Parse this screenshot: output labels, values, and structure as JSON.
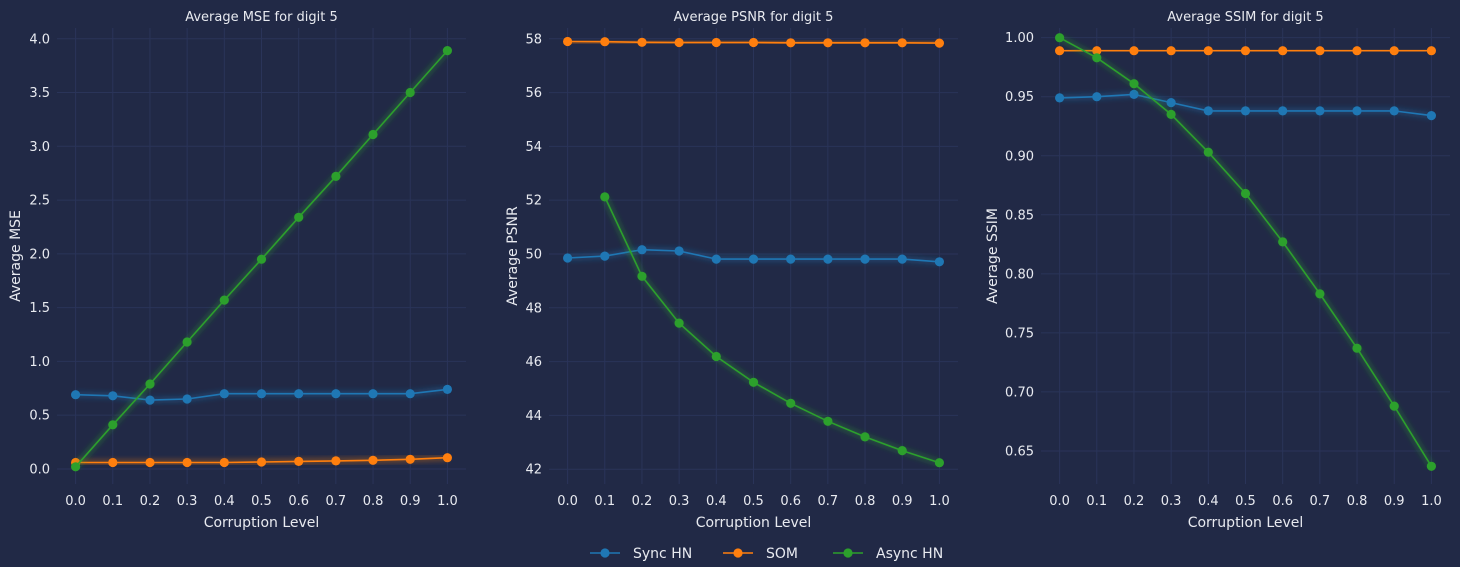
{
  "colors": {
    "background": "#212946",
    "grid": "#2A3459",
    "series": [
      "#1f77b4",
      "#ff7f0e",
      "#2ca02c"
    ]
  },
  "legend": {
    "placement": "bottom-center",
    "items": [
      "Sync HN",
      "SOM",
      "Async HN"
    ]
  },
  "chart_data": [
    {
      "type": "line",
      "title": "Average MSE for digit 5",
      "xlabel": "Corruption Level",
      "ylabel": "Average MSE",
      "x": [
        0.0,
        0.1,
        0.2,
        0.3,
        0.4,
        0.5,
        0.6,
        0.7,
        0.8,
        0.9,
        1.0
      ],
      "xticks": [
        "0.0",
        "0.1",
        "0.2",
        "0.3",
        "0.4",
        "0.5",
        "0.6",
        "0.7",
        "0.8",
        "0.9",
        "1.0"
      ],
      "xlim": [
        -0.05,
        1.05
      ],
      "ylim": [
        -0.14,
        4.1
      ],
      "yticks": [
        "0.0",
        "0.5",
        "1.0",
        "1.5",
        "2.0",
        "2.5",
        "3.0",
        "3.5",
        "4.0"
      ],
      "grid": true,
      "series": [
        {
          "name": "Sync HN",
          "values": [
            0.69,
            0.68,
            0.64,
            0.65,
            0.7,
            0.7,
            0.7,
            0.7,
            0.7,
            0.7,
            0.74
          ]
        },
        {
          "name": "SOM",
          "values": [
            0.06,
            0.06,
            0.06,
            0.06,
            0.06,
            0.065,
            0.07,
            0.075,
            0.08,
            0.09,
            0.105
          ]
        },
        {
          "name": "Async HN",
          "values": [
            0.02,
            0.41,
            0.79,
            1.18,
            1.57,
            1.95,
            2.34,
            2.72,
            3.11,
            3.5,
            3.89
          ]
        }
      ]
    },
    {
      "type": "line",
      "title": "Average PSNR for digit 5",
      "xlabel": "Corruption Level",
      "ylabel": "Average PSNR",
      "x": [
        0.0,
        0.1,
        0.2,
        0.3,
        0.4,
        0.5,
        0.6,
        0.7,
        0.8,
        0.9,
        1.0
      ],
      "xticks": [
        "0.0",
        "0.1",
        "0.2",
        "0.3",
        "0.4",
        "0.5",
        "0.6",
        "0.7",
        "0.8",
        "0.9",
        "1.0"
      ],
      "xlim": [
        -0.05,
        1.05
      ],
      "ylim": [
        41.45,
        58.4
      ],
      "yticks": [
        "42",
        "44",
        "46",
        "48",
        "50",
        "52",
        "54",
        "56",
        "58"
      ],
      "grid": true,
      "series": [
        {
          "name": "Sync HN",
          "values": [
            49.85,
            49.92,
            50.16,
            50.11,
            49.81,
            49.81,
            49.81,
            49.81,
            49.81,
            49.81,
            49.71
          ]
        },
        {
          "name": "SOM",
          "values": [
            57.9,
            57.89,
            57.87,
            57.86,
            57.86,
            57.86,
            57.85,
            57.85,
            57.85,
            57.85,
            57.84
          ]
        },
        {
          "name": "Async HN",
          "values": [
            null,
            52.12,
            49.17,
            47.43,
            46.19,
            45.23,
            44.45,
            43.78,
            43.2,
            42.69,
            42.24
          ]
        }
      ]
    },
    {
      "type": "line",
      "title": "Average SSIM for digit 5",
      "xlabel": "Corruption Level",
      "ylabel": "Average SSIM",
      "x": [
        0.0,
        0.1,
        0.2,
        0.3,
        0.4,
        0.5,
        0.6,
        0.7,
        0.8,
        0.9,
        1.0
      ],
      "xticks": [
        "0.0",
        "0.1",
        "0.2",
        "0.3",
        "0.4",
        "0.5",
        "0.6",
        "0.7",
        "0.8",
        "0.9",
        "1.0"
      ],
      "xlim": [
        -0.05,
        1.05
      ],
      "ylim": [
        0.622,
        1.0082
      ],
      "yticks": [
        "0.65",
        "0.70",
        "0.75",
        "0.80",
        "0.85",
        "0.90",
        "0.95",
        "1.00"
      ],
      "grid": true,
      "series": [
        {
          "name": "Sync HN",
          "values": [
            0.949,
            0.95,
            0.952,
            0.945,
            0.938,
            0.938,
            0.938,
            0.938,
            0.938,
            0.938,
            0.934
          ]
        },
        {
          "name": "SOM",
          "values": [
            0.989,
            0.989,
            0.989,
            0.989,
            0.989,
            0.989,
            0.989,
            0.989,
            0.989,
            0.989,
            0.989
          ]
        },
        {
          "name": "Async HN",
          "values": [
            1.0,
            0.983,
            0.961,
            0.935,
            0.903,
            0.868,
            0.827,
            0.783,
            0.737,
            0.688,
            0.637
          ]
        }
      ]
    }
  ]
}
